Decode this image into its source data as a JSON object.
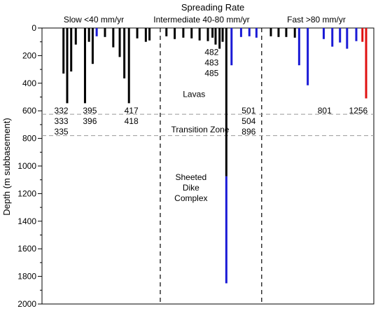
{
  "chart_data": {
    "type": "bar",
    "title": "Spreading Rate",
    "ylabel": "Depth (m subbasement)",
    "ylim": [
      0,
      2000
    ],
    "yticks": [
      0,
      200,
      400,
      600,
      800,
      1000,
      1200,
      1400,
      1600,
      1800,
      2000
    ],
    "y_minor_step": 100,
    "y_inverted": true,
    "groups": [
      {
        "label": "Slow <40 mm/yr"
      },
      {
        "label": "Intermediate 40-80 mm/yr"
      },
      {
        "label": "Fast >80 mm/yr"
      }
    ],
    "reference_lines": [
      {
        "name": "lavas-base",
        "y": 625
      },
      {
        "name": "transition-base",
        "y": 780
      }
    ],
    "zone_labels": [
      "Lavas",
      "Transition Zone",
      "Sheeted\nDike\nComplex"
    ],
    "site_labels": [
      {
        "text": "332\n333\n335",
        "y": 610
      },
      {
        "text": "395\n396",
        "y": 610
      },
      {
        "text": "417\n418",
        "y": 610
      },
      {
        "text": "482\n483\n485",
        "y": 185
      },
      {
        "text": "501\n504\n896",
        "y": 610
      },
      {
        "text": "801",
        "y": 610
      },
      {
        "text": "1256",
        "y": 610
      }
    ],
    "series_colors": {
      "black": "#000000",
      "blue": "#1a1ad6",
      "red": "#e01010"
    },
    "bars": [
      {
        "group": 0,
        "x": 0.07,
        "depth": 330,
        "color": "black"
      },
      {
        "group": 0,
        "x": 0.082,
        "depth": 545,
        "color": "black"
      },
      {
        "group": 0,
        "x": 0.095,
        "depth": 315,
        "color": "black"
      },
      {
        "group": 0,
        "x": 0.11,
        "depth": 120,
        "color": "black"
      },
      {
        "group": 0,
        "x": 0.14,
        "depth": 545,
        "color": "black"
      },
      {
        "group": 0,
        "x": 0.153,
        "depth": 100,
        "color": "black"
      },
      {
        "group": 0,
        "x": 0.165,
        "depth": 260,
        "color": "black"
      },
      {
        "group": 0,
        "x": 0.178,
        "depth": 60,
        "color": "blue"
      },
      {
        "group": 0,
        "x": 0.205,
        "depth": 65,
        "color": "black"
      },
      {
        "group": 0,
        "x": 0.232,
        "depth": 140,
        "color": "black"
      },
      {
        "group": 0,
        "x": 0.253,
        "depth": 210,
        "color": "black"
      },
      {
        "group": 0,
        "x": 0.268,
        "depth": 365,
        "color": "black"
      },
      {
        "group": 0,
        "x": 0.283,
        "depth": 545,
        "color": "black"
      },
      {
        "group": 0,
        "x": 0.31,
        "depth": 75,
        "color": "black"
      },
      {
        "group": 0,
        "x": 0.338,
        "depth": 100,
        "color": "black"
      },
      {
        "group": 0,
        "x": 0.35,
        "depth": 90,
        "color": "black"
      },
      {
        "group": 1,
        "x": 0.405,
        "depth": 60,
        "color": "black"
      },
      {
        "group": 1,
        "x": 0.432,
        "depth": 80,
        "color": "black"
      },
      {
        "group": 1,
        "x": 0.46,
        "depth": 70,
        "color": "black"
      },
      {
        "group": 1,
        "x": 0.487,
        "depth": 75,
        "color": "black"
      },
      {
        "group": 1,
        "x": 0.513,
        "depth": 90,
        "color": "black"
      },
      {
        "group": 1,
        "x": 0.54,
        "depth": 95,
        "color": "black"
      },
      {
        "group": 1,
        "x": 0.555,
        "depth": 70,
        "color": "black"
      },
      {
        "group": 1,
        "x": 0.565,
        "depth": 120,
        "color": "black"
      },
      {
        "group": 1,
        "x": 0.578,
        "depth": 150,
        "color": "black"
      },
      {
        "group": 1,
        "x": 0.588,
        "depth": 100,
        "color": "black"
      },
      {
        "group": 1,
        "x": 0.6,
        "depth": 1075,
        "color": "black"
      },
      {
        "group": 1,
        "x": 0.6,
        "from": 1075,
        "depth": 1850,
        "color": "blue"
      },
      {
        "group": 1,
        "x": 0.617,
        "depth": 270,
        "color": "blue"
      },
      {
        "group": 1,
        "x": 0.648,
        "depth": 65,
        "color": "blue"
      },
      {
        "group": 1,
        "x": 0.675,
        "depth": 60,
        "color": "blue"
      },
      {
        "group": 1,
        "x": 0.698,
        "depth": 70,
        "color": "blue"
      },
      {
        "group": 2,
        "x": 0.745,
        "depth": 60,
        "color": "black"
      },
      {
        "group": 2,
        "x": 0.77,
        "depth": 65,
        "color": "black"
      },
      {
        "group": 2,
        "x": 0.795,
        "depth": 65,
        "color": "black"
      },
      {
        "group": 2,
        "x": 0.823,
        "depth": 70,
        "color": "black"
      },
      {
        "group": 2,
        "x": 0.837,
        "depth": 270,
        "color": "blue"
      },
      {
        "group": 2,
        "x": 0.865,
        "depth": 415,
        "color": "blue"
      },
      {
        "group": 2,
        "x": 0.917,
        "depth": 80,
        "color": "blue"
      },
      {
        "group": 2,
        "x": 0.945,
        "depth": 135,
        "color": "blue"
      },
      {
        "group": 2,
        "x": 0.97,
        "depth": 105,
        "color": "blue"
      },
      {
        "group": 2,
        "x": 0.993,
        "depth": 150,
        "color": "blue"
      },
      {
        "group": 2,
        "x": 1.023,
        "depth": 95,
        "color": "blue"
      },
      {
        "group": 2,
        "x": 1.043,
        "depth": 100,
        "color": "red"
      },
      {
        "group": 2,
        "x": 1.055,
        "depth": 510,
        "color": "red"
      }
    ]
  }
}
